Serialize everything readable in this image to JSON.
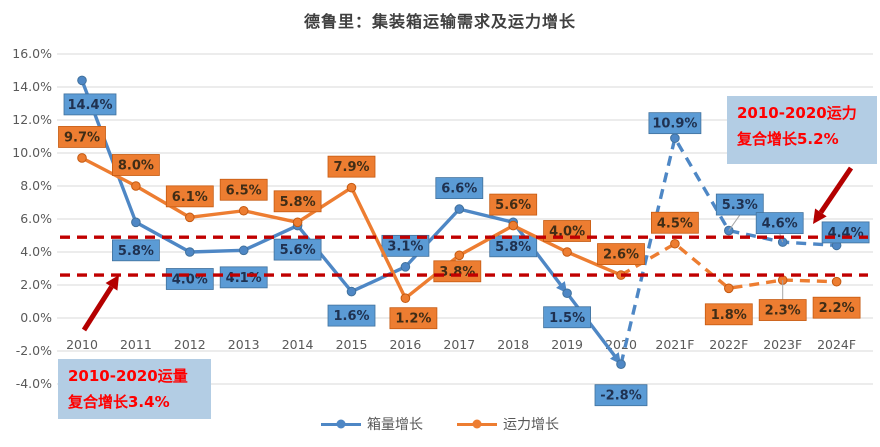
{
  "title": "德鲁里：集装箱运输需求及运力增长",
  "legend": {
    "items": [
      {
        "label": "箱量增长",
        "color": "#4e87c5"
      },
      {
        "label": "运力增长",
        "color": "#ed7d31"
      }
    ]
  },
  "annotations": {
    "capacity_cagr": {
      "line1": "2010-2020运力",
      "line2": "复合增长5.2%",
      "bg": "#b3cde4",
      "color": "#ff0000"
    },
    "volume_cagr": {
      "line1": "2010-2020运量",
      "line2": "复合增长3.4%",
      "bg": "#b3cde4",
      "color": "#ff0000"
    }
  },
  "chart_data": {
    "type": "line",
    "title": "德鲁里：集装箱运输需求及运力增长",
    "xlabel": "",
    "ylabel": "",
    "ylim": [
      -4,
      16
    ],
    "grid": true,
    "legend_position": "bottom",
    "y_ticks": [
      16,
      14,
      12,
      10,
      8,
      6,
      4,
      2,
      0,
      -2,
      -4
    ],
    "y_tick_suffix": "%",
    "categories": [
      "2010",
      "2011",
      "2012",
      "2013",
      "2014",
      "2015",
      "2016",
      "2017",
      "2018",
      "2019",
      "2020",
      "2021F",
      "2022F",
      "2023F",
      "2024F"
    ],
    "series": [
      {
        "name": "箱量增长",
        "color": "#4e87c5",
        "label_bg": "#5b9bd5",
        "label_border": "#41719c",
        "label_text_color": "#1f3150",
        "values": [
          14.4,
          5.8,
          4.0,
          4.1,
          5.6,
          1.6,
          3.1,
          6.6,
          5.8,
          1.5,
          -2.8,
          10.9,
          5.3,
          4.6,
          4.4
        ],
        "dashed_from_index": 10,
        "label_side": [
          "below",
          "below",
          "below",
          "below",
          "below",
          "below",
          "above",
          "above",
          "below",
          "below",
          "below",
          "above",
          "above",
          "above",
          "above"
        ],
        "label_offsets": {
          "0": {
            "dx": 8,
            "dy": 24
          },
          "1": {
            "dy": 28
          },
          "2": {
            "dy": 27
          },
          "3": {
            "dy": 27
          },
          "10": {
            "dy": 31
          },
          "11": {
            "dy": -15
          },
          "12": {
            "dx": 11,
            "dy": -26
          },
          "13": {
            "dx": -3,
            "dy": -19
          },
          "14": {
            "dx": 9,
            "dy": -13
          }
        },
        "leader_label_indexes": [
          12,
          13
        ],
        "arrow_segment_ends": [
          9,
          10
        ]
      },
      {
        "name": "运力增长",
        "color": "#ed7d31",
        "label_bg": "#ed7d31",
        "label_border": "#c55a11",
        "label_text_color": "#402d16",
        "values": [
          9.7,
          8.0,
          6.1,
          6.5,
          5.8,
          7.9,
          1.2,
          3.8,
          5.6,
          4.0,
          2.6,
          4.5,
          1.8,
          2.3,
          2.2
        ],
        "dashed_from_index": 10,
        "label_side": [
          "above",
          "above",
          "above",
          "above",
          "above",
          "above",
          "below",
          "below",
          "above",
          "above",
          "above",
          "above",
          "below",
          "below",
          "below"
        ],
        "label_offsets": {
          "6": {
            "dx": 8,
            "dy": 20
          },
          "7": {
            "dx": -2,
            "dy": 16
          },
          "12": {
            "dy": 26
          },
          "13": {
            "dy": 30
          },
          "14": {
            "dy": 26
          }
        },
        "leader_label_indexes": [
          13
        ],
        "arrow_segment_ends": []
      }
    ],
    "reference_lines": [
      {
        "name": "2010-2020运力复合增长",
        "value": 5.2,
        "draw_y": 4.9,
        "color": "#c00000",
        "style": "dashed"
      },
      {
        "name": "2010-2020运量复合增长",
        "value": 3.4,
        "draw_y": 2.6,
        "color": "#c00000",
        "style": "dashed"
      }
    ]
  }
}
